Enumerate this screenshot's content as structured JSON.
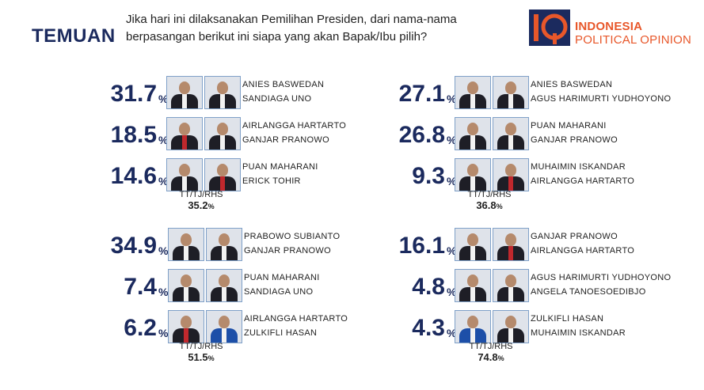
{
  "header": {
    "title": "TEMUAN",
    "question_line1": "Jika hari ini dilaksanakan Pemilihan Presiden, dari nama-nama",
    "question_line2": "berpasangan berikut ini siapa yang akan Bapak/Ibu pilih?",
    "logo_line1": "INDONESIA",
    "logo_line2": "POLITICAL OPINION",
    "brand_color": "#e8572a",
    "accent_color": "#1b2a5e"
  },
  "blocks": [
    {
      "pairs": [
        {
          "value": "31.7",
          "unit": "%",
          "name1": "ANIES BASWEDAN",
          "name2": "SANDIAGA UNO"
        },
        {
          "value": "18.5",
          "unit": "%",
          "name1": "AIRLANGGA HARTARTO",
          "name2": "GANJAR PRANOWO"
        },
        {
          "value": "14.6",
          "unit": "%",
          "name1": "PUAN MAHARANI",
          "name2": "ERICK TOHIR"
        }
      ],
      "tt_label": "TT/TJ/RHS",
      "tt_value": "35.2",
      "tt_unit": "%"
    },
    {
      "pairs": [
        {
          "value": "27.1",
          "unit": "%",
          "name1": "ANIES BASWEDAN",
          "name2": "AGUS HARIMURTI YUDHOYONO"
        },
        {
          "value": "26.8",
          "unit": "%",
          "name1": "PUAN MAHARANI",
          "name2": "GANJAR PRANOWO"
        },
        {
          "value": "9.3",
          "unit": "%",
          "name1": "MUHAIMIN ISKANDAR",
          "name2": "AIRLANGGA HARTARTO"
        }
      ],
      "tt_label": "TT/TJ/RHS",
      "tt_value": "36.8",
      "tt_unit": "%"
    },
    {
      "pairs": [
        {
          "value": "34.9",
          "unit": "%",
          "name1": "PRABOWO SUBIANTO",
          "name2": "GANJAR PRANOWO"
        },
        {
          "value": "7.4",
          "unit": "%",
          "name1": "PUAN MAHARANI",
          "name2": "SANDIAGA UNO"
        },
        {
          "value": "6.2",
          "unit": "%",
          "name1": "AIRLANGGA HARTARTO",
          "name2": "ZULKIFLI HASAN"
        }
      ],
      "tt_label": "TT/TJ/RHS",
      "tt_value": "51.5",
      "tt_unit": "%"
    },
    {
      "pairs": [
        {
          "value": "16.1",
          "unit": "%",
          "name1": "GANJAR PRANOWO",
          "name2": "AIRLANGGA HARTARTO"
        },
        {
          "value": "4.8",
          "unit": "%",
          "name1": "AGUS HARIMURTI YUDHOYONO",
          "name2": "ANGELA TANOESOEDIBJO"
        },
        {
          "value": "4.3",
          "unit": "%",
          "name1": "ZULKIFLI HASAN",
          "name2": "MUHAIMIN ISKANDAR"
        }
      ],
      "tt_label": "TT/TJ/RHS",
      "tt_value": "74.8",
      "tt_unit": "%"
    }
  ]
}
